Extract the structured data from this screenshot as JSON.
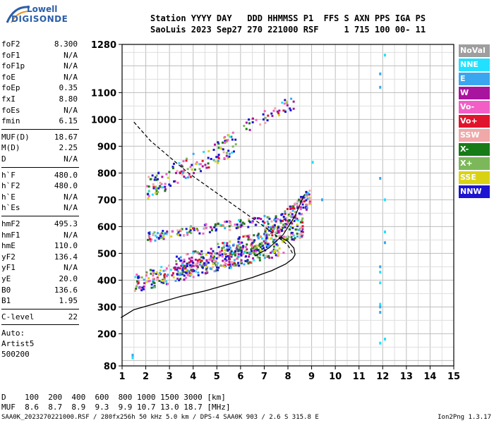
{
  "logo": {
    "line1": "Lowell",
    "line2": "DIGISONDE"
  },
  "header": {
    "line1": "Station YYYY DAY   DDD HHMMSS P1  FFS S AXN PPS IGA PS",
    "line2": "SaoLuis 2023 Sep27 270 221000 RSF     1 715 100 00- 11"
  },
  "params": [
    {
      "group": 1,
      "name": "foF2",
      "value": "8.300"
    },
    {
      "group": 1,
      "name": "foF1",
      "value": "N/A"
    },
    {
      "group": 1,
      "name": "foF1p",
      "value": "N/A"
    },
    {
      "group": 1,
      "name": "foE",
      "value": "N/A"
    },
    {
      "group": 1,
      "name": "foEp",
      "value": "0.35"
    },
    {
      "group": 1,
      "name": "fxI",
      "value": "8.80"
    },
    {
      "group": 1,
      "name": "foEs",
      "value": "N/A"
    },
    {
      "group": 1,
      "name": "fmin",
      "value": "6.15"
    },
    {
      "group": 2,
      "name": "MUF(D)",
      "value": "18.67"
    },
    {
      "group": 2,
      "name": "M(D)",
      "value": "2.25"
    },
    {
      "group": 2,
      "name": "D",
      "value": "N/A"
    },
    {
      "group": 3,
      "name": "h`F",
      "value": "480.0"
    },
    {
      "group": 3,
      "name": "h`F2",
      "value": "480.0"
    },
    {
      "group": 3,
      "name": "h`E",
      "value": "N/A"
    },
    {
      "group": 3,
      "name": "h`Es",
      "value": "N/A"
    },
    {
      "group": 4,
      "name": "hmF2",
      "value": "495.3"
    },
    {
      "group": 4,
      "name": "hmF1",
      "value": "N/A"
    },
    {
      "group": 4,
      "name": "hmE",
      "value": "110.0"
    },
    {
      "group": 4,
      "name": "yF2",
      "value": "136.4"
    },
    {
      "group": 4,
      "name": "yF1",
      "value": "N/A"
    },
    {
      "group": 4,
      "name": "yE",
      "value": "20.0"
    },
    {
      "group": 4,
      "name": "B0",
      "value": "136.6"
    },
    {
      "group": 4,
      "name": "B1",
      "value": "1.95"
    },
    {
      "group": 5,
      "name": "C-level",
      "value": "22"
    }
  ],
  "auto": {
    "line1": "Auto:",
    "line2": "Artist5",
    "line3": "500200"
  },
  "muf_table": {
    "line1": "D    100  200  400  600  800 1000 1500 3000 [km]",
    "line2": "MUF  8.6  8.7  8.9  9.3  9.9 10.7 13.0 18.7 [MHz]"
  },
  "footer": {
    "left": "SAA0K_2023270221000.RSF / 280fx256h 50 kHz 5.0 km / DPS-4 SAA0K 903 / 2.6 S 315.8 E",
    "right": "Ion2Png 1.3.17"
  },
  "legend": [
    {
      "label": "NoVal",
      "color": "#9e9e9e"
    },
    {
      "label": "NNE",
      "color": "#22e0ff"
    },
    {
      "label": "E",
      "color": "#3aa6ef"
    },
    {
      "label": "W",
      "color": "#a9149f"
    },
    {
      "label": "Vo-",
      "color": "#f25ec6"
    },
    {
      "label": "Vo+",
      "color": "#e0142c"
    },
    {
      "label": "SSW",
      "color": "#f0a8a8"
    },
    {
      "label": "X-",
      "color": "#177c17"
    },
    {
      "label": "X+",
      "color": "#7cb85a"
    },
    {
      "label": "SSE",
      "color": "#d9d214"
    },
    {
      "label": "NNW",
      "color": "#1c14d2"
    }
  ],
  "chart_data": {
    "type": "scatter",
    "xlabel": "",
    "ylabel": "",
    "xlim": [
      1,
      15
    ],
    "ylim": [
      80,
      1280
    ],
    "xticks": [
      1,
      2,
      3,
      4,
      5,
      6,
      7,
      8,
      9,
      10,
      11,
      12,
      13,
      14,
      15
    ],
    "yticks": [
      80,
      200,
      300,
      400,
      500,
      600,
      700,
      800,
      900,
      1000,
      1100,
      1280
    ],
    "grid": true,
    "clusters": [
      {
        "x0": 1.5,
        "x1": 7.8,
        "y0": 390,
        "y1": 590,
        "n": 340
      },
      {
        "x0": 3.2,
        "x1": 8.6,
        "y0": 450,
        "y1": 660,
        "n": 300
      },
      {
        "x0": 7.0,
        "x1": 8.9,
        "y0": 560,
        "y1": 770,
        "n": 160
      },
      {
        "x0": 2.0,
        "x1": 7.5,
        "y0": 560,
        "y1": 660,
        "n": 140
      },
      {
        "x0": 2.0,
        "x1": 5.8,
        "y0": 740,
        "y1": 990,
        "n": 140
      },
      {
        "x0": 6.0,
        "x1": 8.2,
        "y0": 960,
        "y1": 1110,
        "n": 40
      }
    ],
    "echo_points": [
      [
        1.4,
        120
      ],
      [
        1.4,
        110
      ],
      [
        11.85,
        1170
      ],
      [
        11.85,
        1120
      ],
      [
        11.85,
        780
      ],
      [
        11.85,
        450
      ],
      [
        11.85,
        430
      ],
      [
        11.85,
        390
      ],
      [
        11.85,
        310
      ],
      [
        11.85,
        300
      ],
      [
        11.85,
        280
      ],
      [
        11.85,
        165
      ],
      [
        12.05,
        1240
      ],
      [
        12.05,
        700
      ],
      [
        12.05,
        580
      ],
      [
        12.05,
        540
      ],
      [
        12.05,
        180
      ],
      [
        9.4,
        700
      ],
      [
        9.0,
        840
      ]
    ],
    "height_profile": [
      [
        0.95,
        260
      ],
      [
        1.5,
        290
      ],
      [
        2.5,
        315
      ],
      [
        3.5,
        340
      ],
      [
        4.5,
        360
      ],
      [
        5.5,
        385
      ],
      [
        6.5,
        410
      ],
      [
        7.3,
        435
      ],
      [
        7.9,
        460
      ],
      [
        8.2,
        480
      ],
      [
        8.3,
        495
      ],
      [
        8.25,
        520
      ],
      [
        8.0,
        545
      ],
      [
        7.7,
        560
      ]
    ],
    "muf_curve": [
      [
        1.5,
        990
      ],
      [
        2.2,
        920
      ],
      [
        3.0,
        860
      ],
      [
        3.8,
        800
      ],
      [
        4.6,
        750
      ],
      [
        5.4,
        700
      ],
      [
        6.2,
        650
      ],
      [
        7.0,
        600
      ],
      [
        7.6,
        560
      ],
      [
        8.0,
        530
      ],
      [
        8.2,
        500
      ]
    ],
    "trace_curve": [
      [
        6.6,
        490
      ],
      [
        7.2,
        520
      ],
      [
        7.8,
        570
      ],
      [
        8.3,
        640
      ],
      [
        8.7,
        720
      ]
    ]
  }
}
